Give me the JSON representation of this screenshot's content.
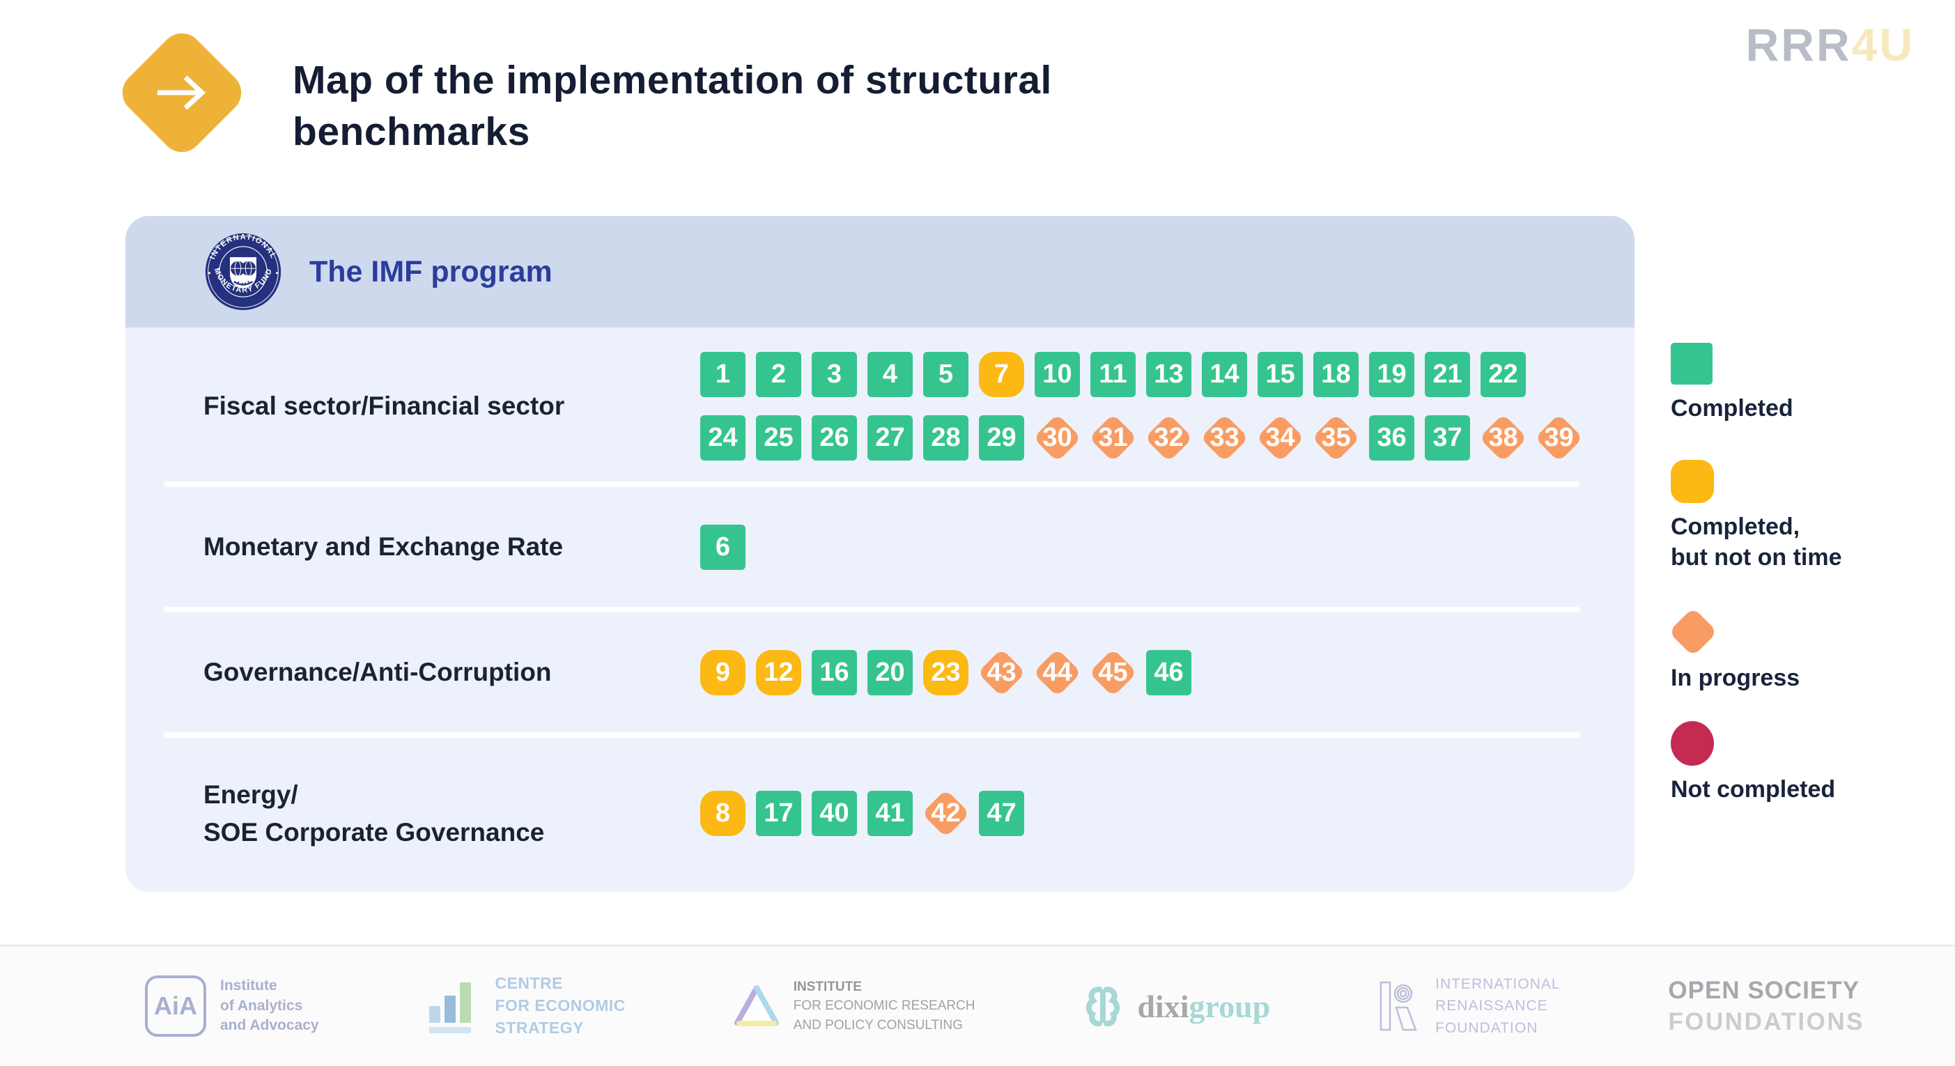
{
  "title": "Map of the implementation of structural benchmarks",
  "brand": {
    "gray": "RRR",
    "accent": "4U"
  },
  "program": {
    "title": "The IMF program",
    "seal_top": "INTERNATIONAL",
    "seal_bottom": "MONETARY FUND"
  },
  "legend": [
    {
      "status": "completed",
      "label": "Completed",
      "color": "#35c48f"
    },
    {
      "status": "late",
      "label": "Completed,\nbut not on time",
      "color": "#fcb813"
    },
    {
      "status": "progress",
      "label": "In progress",
      "color": "#f99c63"
    },
    {
      "status": "not_completed",
      "label": "Not completed",
      "color": "#c42b52"
    }
  ],
  "chart_data": {
    "type": "table",
    "title": "Map of the implementation of structural benchmarks",
    "group": "The IMF program",
    "status_colors": {
      "completed": "#35c48f",
      "late": "#fcb813",
      "progress": "#f99c63",
      "not_completed": "#c42b52"
    },
    "categories": [
      {
        "label": "Fiscal sector/Financial sector",
        "lines": [
          [
            {
              "n": "1",
              "s": "completed"
            },
            {
              "n": "2",
              "s": "completed"
            },
            {
              "n": "3",
              "s": "completed"
            },
            {
              "n": "4",
              "s": "completed"
            },
            {
              "n": "5",
              "s": "completed"
            },
            {
              "n": "7",
              "s": "late"
            },
            {
              "n": "10",
              "s": "completed"
            },
            {
              "n": "11",
              "s": "completed"
            },
            {
              "n": "13",
              "s": "completed"
            },
            {
              "n": "14",
              "s": "completed"
            },
            {
              "n": "15",
              "s": "completed"
            },
            {
              "n": "18",
              "s": "completed"
            },
            {
              "n": "19",
              "s": "completed"
            },
            {
              "n": "21",
              "s": "completed"
            },
            {
              "n": "22",
              "s": "completed"
            }
          ],
          [
            {
              "n": "24",
              "s": "completed"
            },
            {
              "n": "25",
              "s": "completed"
            },
            {
              "n": "26",
              "s": "completed"
            },
            {
              "n": "27",
              "s": "completed"
            },
            {
              "n": "28",
              "s": "completed"
            },
            {
              "n": "29",
              "s": "completed"
            },
            {
              "n": "30",
              "s": "progress"
            },
            {
              "n": "31",
              "s": "progress"
            },
            {
              "n": "32",
              "s": "progress"
            },
            {
              "n": "33",
              "s": "progress"
            },
            {
              "n": "34",
              "s": "progress"
            },
            {
              "n": "35",
              "s": "progress"
            },
            {
              "n": "36",
              "s": "completed"
            },
            {
              "n": "37",
              "s": "completed"
            },
            {
              "n": "38",
              "s": "progress"
            },
            {
              "n": "39",
              "s": "progress"
            }
          ]
        ]
      },
      {
        "label": "Monetary and Exchange Rate",
        "lines": [
          [
            {
              "n": "6",
              "s": "completed"
            }
          ]
        ]
      },
      {
        "label": "Governance/Anti-Corruption",
        "lines": [
          [
            {
              "n": "9",
              "s": "late"
            },
            {
              "n": "12",
              "s": "late"
            },
            {
              "n": "16",
              "s": "completed"
            },
            {
              "n": "20",
              "s": "completed"
            },
            {
              "n": "23",
              "s": "late"
            },
            {
              "n": "43",
              "s": "progress"
            },
            {
              "n": "44",
              "s": "progress"
            },
            {
              "n": "45",
              "s": "progress"
            },
            {
              "n": "46",
              "s": "completed"
            }
          ]
        ]
      },
      {
        "label": "Energy/\nSOE Corporate Governance",
        "lines": [
          [
            {
              "n": "8",
              "s": "late"
            },
            {
              "n": "17",
              "s": "completed"
            },
            {
              "n": "40",
              "s": "completed"
            },
            {
              "n": "41",
              "s": "completed"
            },
            {
              "n": "42",
              "s": "progress"
            },
            {
              "n": "47",
              "s": "completed"
            }
          ]
        ]
      }
    ]
  },
  "footer": {
    "logos": [
      {
        "name": "aia",
        "icon_text": "AiA",
        "lines": [
          "Institute",
          "of Analytics",
          "and Advocacy"
        ]
      },
      {
        "name": "ces",
        "lines": [
          "CENTRE",
          "FOR ECONOMIC",
          "STRATEGY"
        ]
      },
      {
        "name": "ierpc",
        "lines": [
          "INSTITUTE",
          "FOR ECONOMIC RESEARCH",
          "AND POLICY CONSULTING"
        ]
      },
      {
        "name": "dixigroup",
        "text_gray": "dixi",
        "text_teal": "group"
      },
      {
        "name": "irf",
        "lines": [
          "INTERNATIONAL",
          "RENAISSANCE",
          "FOUNDATION"
        ]
      },
      {
        "name": "osf",
        "lines": [
          "OPEN SOCIETY",
          "FOUNDATIONS"
        ]
      }
    ]
  }
}
